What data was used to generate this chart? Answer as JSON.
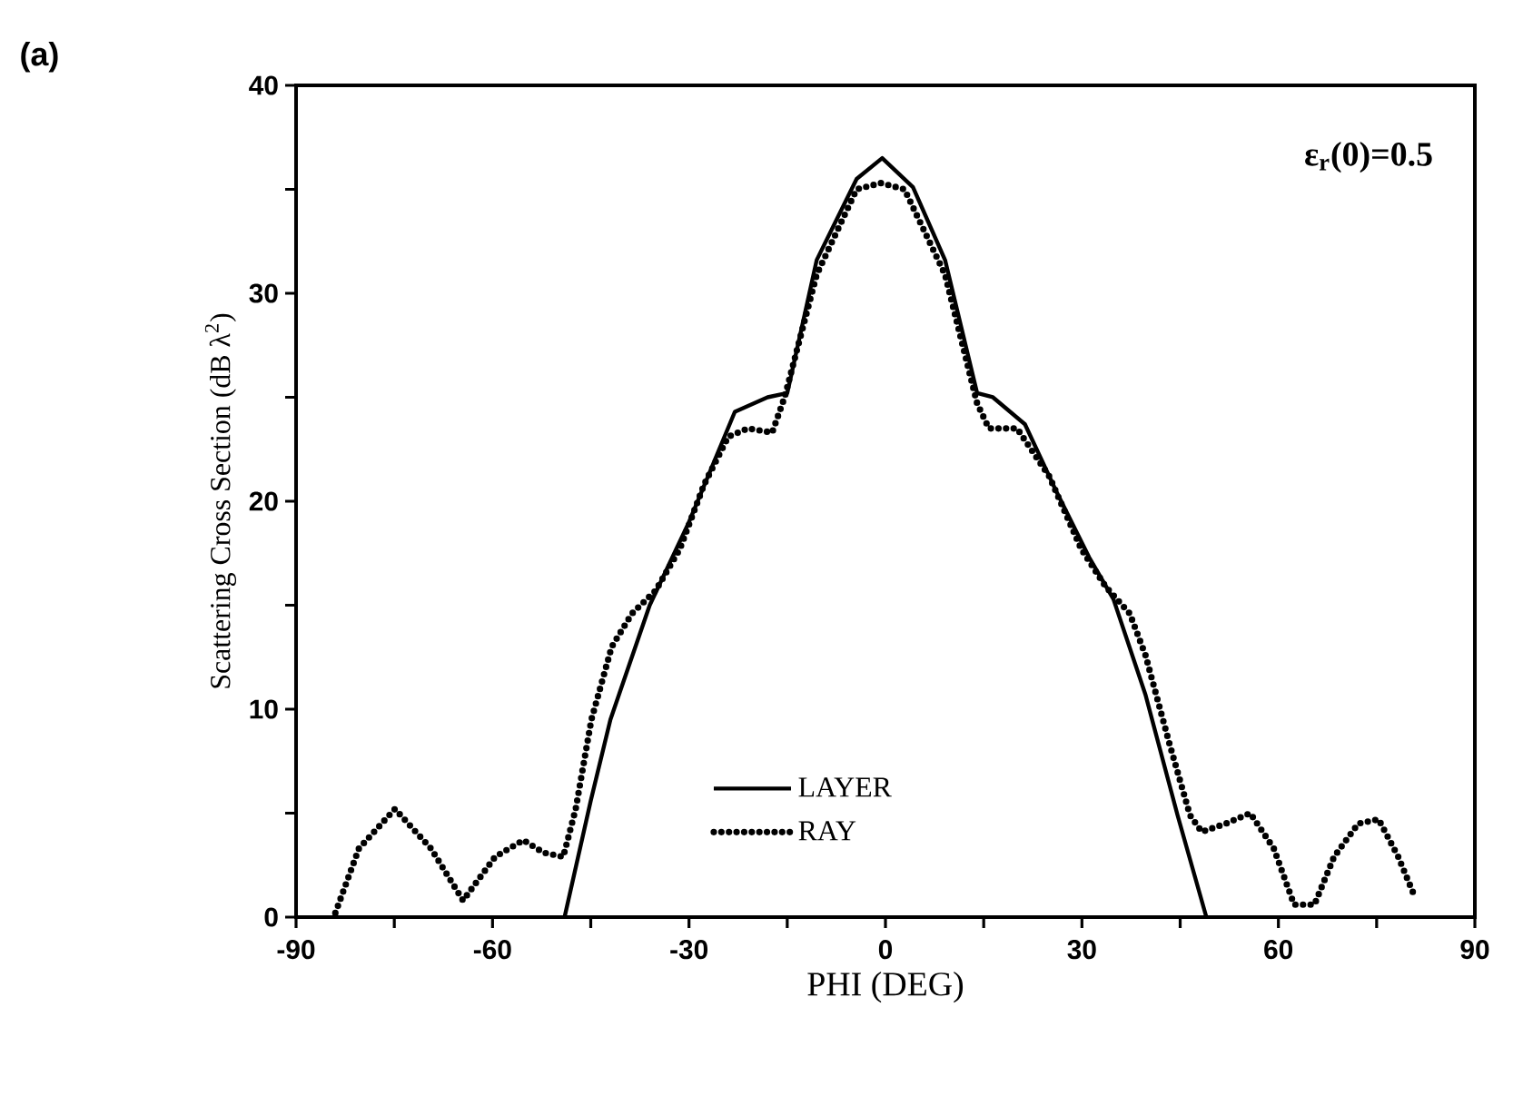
{
  "chart_data": {
    "type": "line",
    "xlabel": "PHI (DEG)",
    "ylabel": "Scattering Cross Section (dB λ$^{2}$)",
    "annotations": [
      "(a)",
      "ε$_{r}$(0)=0.5"
    ],
    "xlim": [
      -90,
      90
    ],
    "ylim": [
      0,
      40
    ],
    "xticks": [
      -90,
      {
        "value": -75,
        "label": null
      },
      -60,
      {
        "value": -45,
        "label": null
      },
      -30,
      {
        "value": -15,
        "label": null
      },
      0,
      {
        "value": 15,
        "label": null
      },
      30,
      {
        "value": 45,
        "label": null
      },
      60,
      {
        "value": 75,
        "label": null
      },
      90
    ],
    "yticks": [
      0,
      {
        "value": 5,
        "label": null
      },
      10,
      {
        "value": 15,
        "label": null
      },
      20,
      {
        "value": 25,
        "label": null
      },
      30,
      {
        "value": 35,
        "label": null
      },
      40
    ],
    "legend": "bottom",
    "grid": false,
    "marker": "none",
    "series": [
      {
        "name": "LAYER",
        "color": "#000000",
        "line_style": "solid",
        "x": [
          -49,
          -45,
          -42,
          -36,
          -30,
          -23,
          -18,
          -15,
          -10.5,
          -4.4,
          -0.5,
          4.2,
          9.1,
          14,
          16.4,
          21.3,
          26.2,
          31.1,
          34.8,
          39.7,
          44.6,
          49
        ],
        "values": [
          0,
          5.6,
          9.5,
          15,
          19,
          24.3,
          25,
          25.2,
          31.6,
          35.5,
          36.5,
          35.1,
          31.6,
          25.2,
          25,
          23.7,
          20.4,
          17.3,
          15.3,
          10.7,
          4.9,
          0
        ]
      },
      {
        "name": "RAY",
        "color": "#000000",
        "line_style": "dotted",
        "x": [
          -84,
          -80.4,
          -74.9,
          -69.4,
          -64.5,
          -59.6,
          -55.3,
          -52.2,
          -49.2,
          -47.3,
          -44.9,
          -41.8,
          -38.7,
          -35.1,
          -31.4,
          -27.7,
          -24,
          -21,
          -17.3,
          -15.4,
          -10.5,
          -4.4,
          -0.7,
          2.9,
          9.1,
          14,
          15.8,
          20.1,
          25,
          29.9,
          33.6,
          37.3,
          39.7,
          43.4,
          46.5,
          48.3,
          52,
          55.7,
          59.3,
          62.4,
          65.5,
          68.5,
          72.2,
          75.3,
          78.3,
          80.8
        ],
        "values": [
          0.2,
          3.3,
          5.2,
          3.3,
          0.8,
          2.9,
          3.7,
          3.1,
          2.9,
          5.2,
          9.5,
          13,
          14.6,
          15.7,
          17.7,
          20.8,
          23.1,
          23.5,
          23.3,
          25,
          30.9,
          35,
          35.3,
          35,
          30.9,
          24.7,
          23.5,
          23.5,
          21.2,
          17.7,
          15.9,
          14.6,
          12.6,
          8.3,
          4.9,
          4.1,
          4.5,
          5,
          3.3,
          0.6,
          0.6,
          2.9,
          4.5,
          4.7,
          2.9,
          1
        ]
      }
    ]
  }
}
